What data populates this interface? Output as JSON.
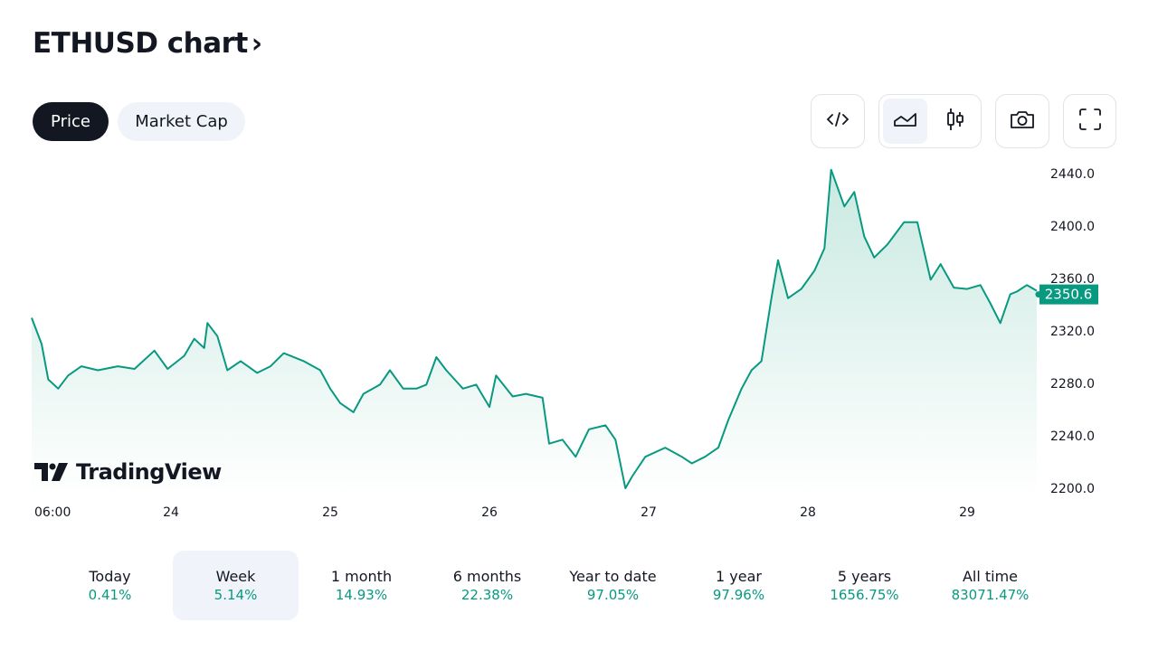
{
  "header": {
    "title": "ETHUSD chart",
    "chevron": "›"
  },
  "tabs": [
    {
      "label": "Price",
      "active": true
    },
    {
      "label": "Market Cap",
      "active": false
    }
  ],
  "toolbar": {
    "icons": [
      "embed-code-icon",
      "area-chart-icon",
      "candlestick-icon",
      "camera-icon",
      "fullscreen-icon"
    ],
    "selected_style": "area"
  },
  "watermark": "TradingView",
  "colors": {
    "line": "#089981",
    "fill_top": "#c9e9e1",
    "fill_bottom": "#ffffff",
    "price_label_bg": "#089981",
    "positive": "#089981",
    "selected_bg": "#f0f3fa"
  },
  "chart_data": {
    "type": "area",
    "symbol": "ETHUSD",
    "ylim": [
      2195,
      2450
    ],
    "yticks": [
      "2200.0",
      "2240.0",
      "2280.0",
      "2320.0",
      "2360.0",
      "2400.0",
      "2440.0"
    ],
    "xticks": [
      "06:00",
      "24",
      "25",
      "26",
      "27",
      "28",
      "29"
    ],
    "last_price": "2350.6",
    "grid": false,
    "points": [
      [
        "23 03:00",
        2330
      ],
      [
        "23 04:30",
        2310
      ],
      [
        "23 05:30",
        2283
      ],
      [
        "23 07:00",
        2276
      ],
      [
        "23 08:30",
        2286
      ],
      [
        "23 10:30",
        2293
      ],
      [
        "23 13:00",
        2290
      ],
      [
        "23 16:00",
        2293
      ],
      [
        "23 18:30",
        2291
      ],
      [
        "23 21:30",
        2305
      ],
      [
        "23 23:30",
        2291
      ],
      [
        "24 02:00",
        2301
      ],
      [
        "24 03:30",
        2314
      ],
      [
        "24 05:00",
        2307
      ],
      [
        "24 05:30",
        2326
      ],
      [
        "24 07:00",
        2316
      ],
      [
        "24 08:30",
        2290
      ],
      [
        "24 10:30",
        2297
      ],
      [
        "24 13:00",
        2288
      ],
      [
        "24 15:00",
        2293
      ],
      [
        "24 17:00",
        2303
      ],
      [
        "24 20:00",
        2297
      ],
      [
        "24 22:30",
        2290
      ],
      [
        "25 00:00",
        2276
      ],
      [
        "25 01:30",
        2265
      ],
      [
        "25 03:30",
        2258
      ],
      [
        "25 05:00",
        2272
      ],
      [
        "25 07:30",
        2279
      ],
      [
        "25 09:00",
        2290
      ],
      [
        "25 11:00",
        2276
      ],
      [
        "25 13:00",
        2276
      ],
      [
        "25 14:30",
        2279
      ],
      [
        "25 16:00",
        2300
      ],
      [
        "25 17:30",
        2290
      ],
      [
        "25 20:00",
        2276
      ],
      [
        "25 22:00",
        2279
      ],
      [
        "26 00:00",
        2262
      ],
      [
        "26 01:00",
        2286
      ],
      [
        "26 03:30",
        2270
      ],
      [
        "26 05:30",
        2272
      ],
      [
        "26 08:00",
        2269
      ],
      [
        "26 09:00",
        2234
      ],
      [
        "26 11:00",
        2237
      ],
      [
        "26 13:00",
        2224
      ],
      [
        "26 15:00",
        2245
      ],
      [
        "26 17:30",
        2248
      ],
      [
        "26 19:00",
        2237
      ],
      [
        "26 20:30",
        2200
      ],
      [
        "26 21:30",
        2209
      ],
      [
        "26 23:30",
        2224
      ],
      [
        "27 02:30",
        2231
      ],
      [
        "27 05:00",
        2224
      ],
      [
        "27 06:30",
        2219
      ],
      [
        "27 08:30",
        2224
      ],
      [
        "27 10:30",
        2231
      ],
      [
        "27 12:00",
        2252
      ],
      [
        "27 14:00",
        2276
      ],
      [
        "27 15:30",
        2290
      ],
      [
        "27 17:00",
        2297
      ],
      [
        "27 18:30",
        2345
      ],
      [
        "27 19:30",
        2374
      ],
      [
        "27 21:00",
        2345
      ],
      [
        "27 23:00",
        2352
      ],
      [
        "28 01:00",
        2366
      ],
      [
        "28 02:30",
        2383
      ],
      [
        "28 03:30",
        2443
      ],
      [
        "28 05:30",
        2415
      ],
      [
        "28 07:00",
        2426
      ],
      [
        "28 08:30",
        2392
      ],
      [
        "28 10:00",
        2376
      ],
      [
        "28 12:00",
        2386
      ],
      [
        "28 14:30",
        2403
      ],
      [
        "28 16:30",
        2403
      ],
      [
        "28 18:30",
        2359
      ],
      [
        "28 20:00",
        2371
      ],
      [
        "28 22:00",
        2353
      ],
      [
        "29 00:00",
        2352
      ],
      [
        "29 02:00",
        2355
      ],
      [
        "29 03:30",
        2341
      ],
      [
        "29 05:00",
        2326
      ],
      [
        "29 06:30",
        2348
      ],
      [
        "29 07:30",
        2350
      ],
      [
        "29 09:00",
        2355
      ],
      [
        "29 10:30",
        2350.6
      ]
    ]
  },
  "periods": [
    {
      "label": "Today",
      "value": "0.41%"
    },
    {
      "label": "Week",
      "value": "5.14%",
      "selected": true
    },
    {
      "label": "1 month",
      "value": "14.93%"
    },
    {
      "label": "6 months",
      "value": "22.38%"
    },
    {
      "label": "Year to date",
      "value": "97.05%"
    },
    {
      "label": "1 year",
      "value": "97.96%"
    },
    {
      "label": "5 years",
      "value": "1656.75%"
    },
    {
      "label": "All time",
      "value": "83071.47%"
    }
  ]
}
